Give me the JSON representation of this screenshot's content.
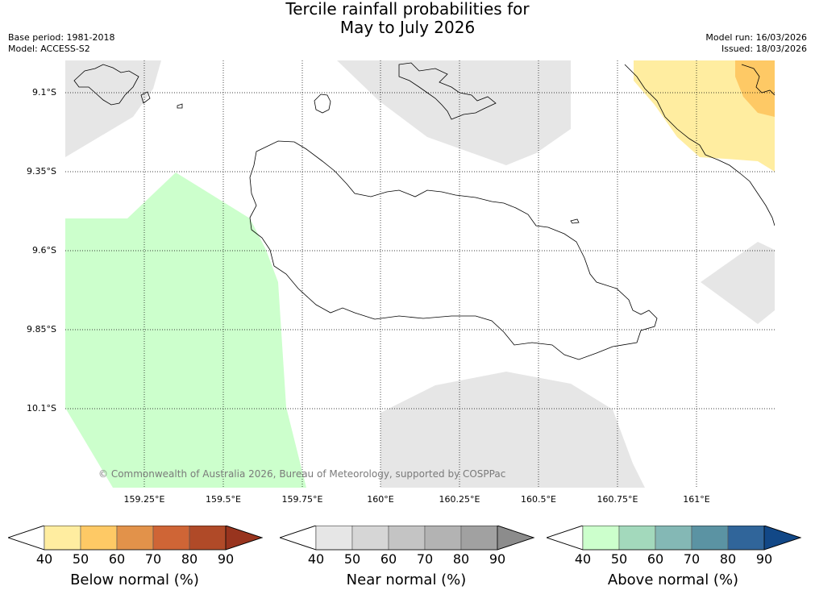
{
  "title_line1": "Tercile rainfall probabilities for",
  "title_line2": "May to July 2026",
  "base_period": "Base period: 1981-2018",
  "model": "Model: ACCESS-S2",
  "model_run": "Model run: 16/03/2026",
  "issued": "Issued: 18/03/2026",
  "copyright": "© Commonwealth of Australia 2026, Bureau of Meteorology, supported by COSPPac",
  "latitudes": [
    "9.1°S",
    "9.35°S",
    "9.6°S",
    "9.85°S",
    "10.1°S"
  ],
  "longitudes": [
    "159.25°E",
    "159.5°E",
    "159.75°E",
    "160°E",
    "160.25°E",
    "160.5°E",
    "160.75°E",
    "161°E"
  ],
  "colorbars": [
    {
      "title": "Below normal (%)",
      "ticks": [
        "40",
        "50",
        "60",
        "70",
        "80",
        "90"
      ],
      "colors": [
        "#ffffff",
        "#ffeda0",
        "#fec965",
        "#e2924a",
        "#cf6536",
        "#b04a28",
        "#98341e"
      ]
    },
    {
      "title": "Near normal (%)",
      "ticks": [
        "40",
        "50",
        "60",
        "70",
        "80",
        "90"
      ],
      "colors": [
        "#ffffff",
        "#e6e6e6",
        "#d6d6d6",
        "#c4c4c4",
        "#b3b3b3",
        "#a1a1a1",
        "#8c8c8c"
      ]
    },
    {
      "title": "Above normal (%)",
      "ticks": [
        "40",
        "50",
        "60",
        "70",
        "80",
        "90"
      ],
      "colors": [
        "#ffffff",
        "#ccffcc",
        "#a3d9bc",
        "#84b8b5",
        "#5b93a3",
        "#30659a",
        "#124887"
      ]
    }
  ],
  "region_colors": {
    "below_50": "#ffeda0",
    "below_60": "#fec965",
    "near_50": "#e6e6e6",
    "above_50": "#ccffcc"
  }
}
